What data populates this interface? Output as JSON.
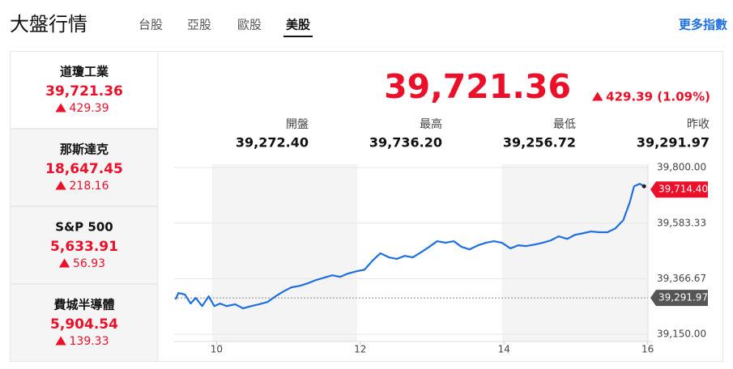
{
  "header": {
    "title": "大盤行情",
    "tabs": [
      "台股",
      "亞股",
      "歐股",
      "美股"
    ],
    "more": "更多指數"
  },
  "sidebar": [
    {
      "name": "道瓊工業",
      "value": "39,721.36",
      "change": "429.39"
    },
    {
      "name": "那斯達克",
      "value": "18,647.45",
      "change": "218.16"
    },
    {
      "name": "S&P 500",
      "value": "5,633.91",
      "change": "56.93"
    },
    {
      "name": "費城半導體",
      "value": "5,904.54",
      "change": "139.33"
    }
  ],
  "quote": {
    "price": "39,721.36",
    "change": "429.39 (1.09%)",
    "stats": [
      {
        "label": "開盤",
        "value": "39,272.40"
      },
      {
        "label": "最高",
        "value": "39,736.20"
      },
      {
        "label": "最低",
        "value": "39,256.72"
      },
      {
        "label": "昨收",
        "value": "39,291.97"
      }
    ]
  },
  "chart_data": {
    "type": "line",
    "x": [
      9.43,
      9.47,
      9.56,
      9.64,
      9.71,
      9.8,
      9.89,
      9.97,
      10.05,
      10.14,
      10.26,
      10.37,
      10.48,
      10.59,
      10.71,
      10.82,
      10.93,
      11.04,
      11.16,
      11.27,
      11.38,
      11.5,
      11.61,
      11.72,
      11.83,
      11.95,
      12.06,
      12.17,
      12.28,
      12.4,
      12.51,
      12.62,
      12.73,
      12.84,
      12.96,
      13.07,
      13.19,
      13.3,
      13.41,
      13.52,
      13.64,
      13.75,
      13.86,
      13.97,
      14.09,
      14.2,
      14.31,
      14.43,
      14.54,
      14.65,
      14.76,
      14.88,
      14.99,
      15.1,
      15.21,
      15.33,
      15.44,
      15.55,
      15.66,
      15.75,
      15.81,
      15.89,
      15.95
    ],
    "series": [
      {
        "color": "#1e6fe0",
        "values": [
          39286,
          39311,
          39305,
          39270,
          39292,
          39260,
          39298,
          39260,
          39270,
          39260,
          39267,
          39251,
          39260,
          39267,
          39276,
          39298,
          39317,
          39333,
          39339,
          39349,
          39361,
          39371,
          39380,
          39374,
          39387,
          39396,
          39402,
          39437,
          39466,
          39450,
          39444,
          39456,
          39450,
          39469,
          39491,
          39513,
          39507,
          39513,
          39491,
          39481,
          39497,
          39507,
          39513,
          39507,
          39485,
          39497,
          39494,
          39500,
          39507,
          39516,
          39532,
          39522,
          39538,
          39544,
          39551,
          39548,
          39548,
          39563,
          39595,
          39664,
          39727,
          39737,
          39727
        ]
      }
    ],
    "xlim": [
      9.41,
      16.06
    ],
    "ylim": [
      39122,
      39813
    ],
    "xticks": [
      10,
      12,
      14,
      16
    ],
    "yticks": [
      {
        "value": 39800,
        "label": "39,800.00"
      },
      {
        "value": 39583.33,
        "label": "39,583.33"
      },
      {
        "value": 39366.67,
        "label": "39,366.67"
      },
      {
        "value": 39150,
        "label": "39,150.00"
      }
    ],
    "last": {
      "value": 39714.4,
      "label": "39,714.40"
    },
    "prev_close": {
      "value": 39291.97,
      "label": "39,291.97"
    }
  }
}
